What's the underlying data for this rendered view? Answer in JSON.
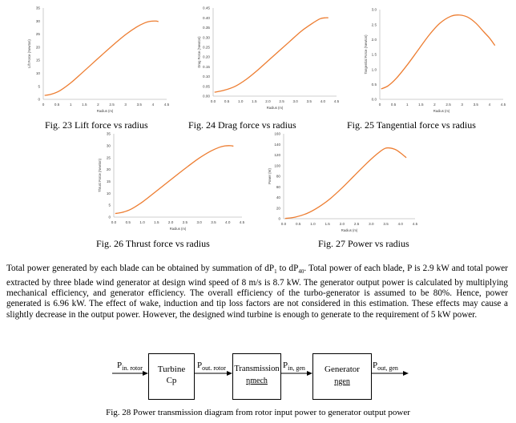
{
  "charts": [
    {
      "type": "line",
      "ylabel": "Lift Force (Newton)",
      "xlabel": "Radius (m)",
      "xlim": [
        0,
        4.5
      ],
      "ylim": [
        0,
        35
      ],
      "xticks": [
        "0",
        "0.5",
        "1",
        "1.5",
        "2",
        "2.5",
        "3",
        "3.5",
        "4",
        "4.5"
      ],
      "yticks": [
        "0",
        "5",
        "10",
        "15",
        "20",
        "25",
        "30",
        "35"
      ],
      "line_color": "#ED7D31",
      "x": [
        0.05,
        0.3,
        0.6,
        1.0,
        1.4,
        1.8,
        2.2,
        2.6,
        3.0,
        3.4,
        3.7,
        3.9,
        4.1,
        4.2
      ],
      "y": [
        1.5,
        2.0,
        3.3,
        6.3,
        10.0,
        13.8,
        17.6,
        21.3,
        24.8,
        27.7,
        29.3,
        29.9,
        30.0,
        29.8
      ]
    },
    {
      "type": "line",
      "ylabel": "Drag Force (Newton)",
      "xlabel": "Radius (m)",
      "xlim": [
        0,
        4.5
      ],
      "ylim": [
        0,
        0.45
      ],
      "xticks": [
        "0.0",
        "0.5",
        "1.0",
        "1.5",
        "2.0",
        "2.5",
        "3.0",
        "3.5",
        "4.0",
        "4.5"
      ],
      "yticks": [
        "0.00",
        "0.05",
        "0.10",
        "0.15",
        "0.20",
        "0.25",
        "0.30",
        "0.35",
        "0.40",
        "0.45"
      ],
      "line_color": "#ED7D31",
      "x": [
        0.05,
        0.4,
        0.8,
        1.2,
        1.6,
        2.0,
        2.4,
        2.8,
        3.2,
        3.6,
        3.9,
        4.1,
        4.2
      ],
      "y": [
        0.02,
        0.03,
        0.05,
        0.085,
        0.13,
        0.18,
        0.23,
        0.28,
        0.33,
        0.37,
        0.395,
        0.4,
        0.4
      ]
    },
    {
      "type": "line",
      "ylabel": "Tangential Force (Newton)",
      "xlabel": "Radius (m)",
      "xlim": [
        0,
        4.5
      ],
      "ylim": [
        0,
        3.0
      ],
      "xticks": [
        "0",
        "0.5",
        "1",
        "1.5",
        "2",
        "2.5",
        "3",
        "3.5",
        "4",
        "4.5"
      ],
      "yticks": [
        "0.0",
        "0.5",
        "1.0",
        "1.5",
        "2.0",
        "2.5",
        "3.0"
      ],
      "line_color": "#ED7D31",
      "x": [
        0.05,
        0.3,
        0.6,
        1.0,
        1.4,
        1.8,
        2.2,
        2.6,
        2.9,
        3.2,
        3.5,
        3.8,
        4.0,
        4.2
      ],
      "y": [
        0.35,
        0.45,
        0.7,
        1.15,
        1.65,
        2.15,
        2.55,
        2.78,
        2.82,
        2.75,
        2.55,
        2.25,
        2.05,
        1.8
      ]
    },
    {
      "type": "line",
      "ylabel": "Thrust Force (Newton)",
      "xlabel": "Radius (m)",
      "xlim": [
        0,
        4.5
      ],
      "ylim": [
        0,
        35
      ],
      "xticks": [
        "0.0",
        "0.5",
        "1.0",
        "1.5",
        "2.0",
        "2.5",
        "3.0",
        "3.5",
        "4.0",
        "4.5"
      ],
      "yticks": [
        "0",
        "5",
        "10",
        "15",
        "20",
        "25",
        "30",
        "35"
      ],
      "line_color": "#ED7D31",
      "x": [
        0.05,
        0.3,
        0.6,
        1.0,
        1.4,
        1.8,
        2.2,
        2.6,
        3.0,
        3.4,
        3.7,
        3.9,
        4.1,
        4.2
      ],
      "y": [
        1.5,
        2.0,
        3.3,
        6.3,
        10.0,
        13.8,
        17.6,
        21.3,
        24.8,
        27.7,
        29.3,
        29.9,
        30.0,
        29.8
      ]
    },
    {
      "type": "line",
      "ylabel": "Power (W)",
      "xlabel": "Radius (m)",
      "xlim": [
        0,
        4.5
      ],
      "ylim": [
        0,
        160
      ],
      "xticks": [
        "0.0",
        "0.5",
        "1.0",
        "1.5",
        "2.0",
        "2.5",
        "3.0",
        "3.5",
        "4.0",
        "4.5"
      ],
      "yticks": [
        "0",
        "20",
        "40",
        "60",
        "80",
        "100",
        "120",
        "140",
        "160"
      ],
      "line_color": "#ED7D31",
      "x": [
        0.05,
        0.4,
        0.8,
        1.2,
        1.6,
        2.0,
        2.4,
        2.8,
        3.2,
        3.5,
        3.8,
        4.0,
        4.2
      ],
      "y": [
        0.5,
        3,
        10,
        22,
        38,
        58,
        80,
        102,
        122,
        133,
        131,
        124,
        115
      ]
    }
  ],
  "captions": {
    "fig23": "Fig. 23 Lift force vs radius",
    "fig24": "Fig. 24 Drag force vs radius",
    "fig25": "Fig. 25 Tangential force vs radius",
    "fig26": "Fig. 26 Thrust force vs radius",
    "fig27": "Fig. 27 Power vs radius",
    "fig28": "Fig. 28 Power transmission diagram from rotor input power to generator output power"
  },
  "paragraph": {
    "part1": "Total power generated by each blade can be obtained by summation of dP",
    "sub1": "1",
    "part2": " to dP",
    "sub2": "40",
    "part3": ". Total power of each blade, P is 2.9 kW and total power extracted by three blade wind generator at design wind speed of 8 m/s is 8.7 kW. The generator output power is calculated by multiplying mechanical efficiency, and generator efficiency. The overall efficiency of the turbo-generator is assumed to be 80%. Hence, power generated is 6.96 kW. The effect of wake, induction and tip loss factors are not considered in this estimation. These effects may cause a slightly decrease in the output power. However, the designed wind turbine is enough to generate to the requirement of 5 kW power."
  },
  "diagram": {
    "p_in_rotor": "P",
    "p_in_rotor_sub": "in. rotor",
    "turbine": "Turbine",
    "cp": "Cp",
    "p_out_rotor": "P",
    "p_out_rotor_sub": "out. rotor",
    "transmission": "Transmission",
    "eta_mech": "ηmech",
    "p_in_gen": "P",
    "p_in_gen_sub": "in, gen",
    "generator": "Generator",
    "eta_gen": "ηgen",
    "p_out_gen": "P",
    "p_out_gen_sub": "out, gen"
  }
}
